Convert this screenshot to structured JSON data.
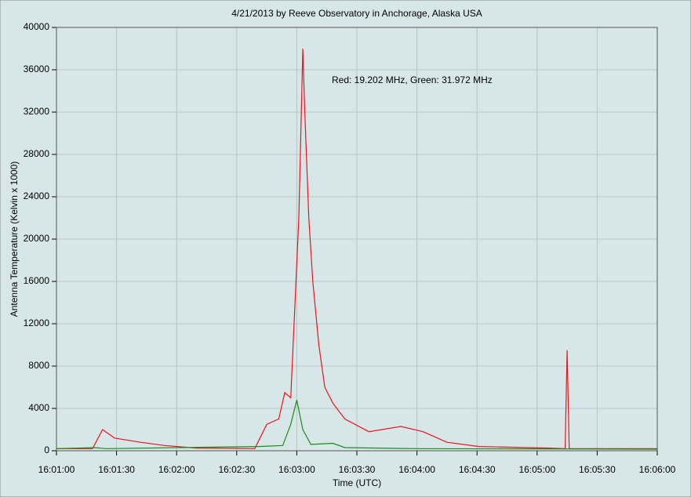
{
  "chart_data": {
    "type": "line",
    "title": "4/21/2013  by  Reeve Observatory  in  Anchorage, Alaska  USA",
    "x_label": "Time (UTC)",
    "y_label": "Antenna Temperature (Kelvin x 1000)",
    "annotation": "Red: 19.202 MHz, Green: 31.972 MHz",
    "xlim": [
      "16:01:00",
      "16:06:00"
    ],
    "xticks": [
      "16:01:00",
      "16:01:30",
      "16:02:00",
      "16:02:30",
      "16:03:00",
      "16:03:30",
      "16:04:00",
      "16:04:30",
      "16:05:00",
      "16:05:30",
      "16:06:00"
    ],
    "ylim": [
      0,
      40000
    ],
    "yticks": [
      0,
      4000,
      8000,
      12000,
      16000,
      20000,
      24000,
      28000,
      32000,
      36000,
      40000
    ],
    "grid": true,
    "series": [
      {
        "name": "Red",
        "color": "#e8141e",
        "x": [
          "16:01:00",
          "16:01:18",
          "16:01:23",
          "16:01:29",
          "16:01:42",
          "16:01:54",
          "16:02:10",
          "16:02:39",
          "16:02:45",
          "16:02:51",
          "16:02:54",
          "16:02:57",
          "16:03:01",
          "16:03:03",
          "16:03:04",
          "16:03:06",
          "16:03:08",
          "16:03:11",
          "16:03:14",
          "16:03:18",
          "16:03:24",
          "16:03:36",
          "16:03:52",
          "16:04:03",
          "16:04:15",
          "16:04:31",
          "16:05:06",
          "16:05:14",
          "16:05:15",
          "16:05:16",
          "16:06:00"
        ],
        "values": [
          200,
          200,
          2000,
          1200,
          800,
          500,
          250,
          200,
          2500,
          3000,
          5500,
          5000,
          22000,
          38000,
          32000,
          22000,
          16000,
          10000,
          6000,
          4500,
          3000,
          1800,
          2300,
          1800,
          800,
          400,
          250,
          200,
          9500,
          200,
          200
        ]
      },
      {
        "name": "Green",
        "color": "#1a8c1a",
        "x": [
          "16:01:00",
          "16:01:19",
          "16:01:25",
          "16:02:41",
          "16:02:53",
          "16:02:57",
          "16:03:00",
          "16:03:03",
          "16:03:07",
          "16:03:18",
          "16:03:24",
          "16:04:00",
          "16:06:00"
        ],
        "values": [
          200,
          300,
          200,
          400,
          500,
          2500,
          4800,
          2000,
          600,
          700,
          300,
          200,
          150
        ]
      }
    ]
  }
}
